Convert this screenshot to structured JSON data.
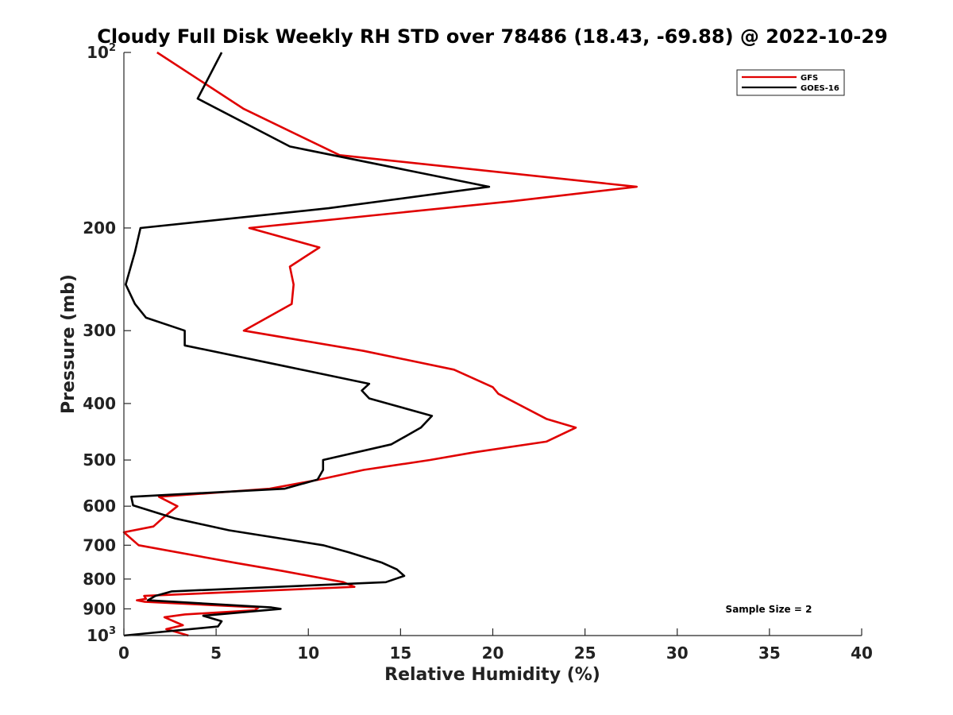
{
  "chart_data": {
    "type": "line",
    "title": "Cloudy Full Disk Weekly RH STD over 78486 (18.43, -69.88) @ 2022-10-29",
    "xlabel": "Relative Humidity (%)",
    "ylabel": "Pressure (mb)",
    "xlim": [
      0,
      40
    ],
    "ylim": [
      100,
      1000
    ],
    "y_scale": "log",
    "y_reversed": true,
    "x_ticks": [
      0,
      5,
      10,
      15,
      20,
      25,
      30,
      35,
      40
    ],
    "y_ticks": [
      {
        "value": 100,
        "label": "10",
        "sup": "2"
      },
      {
        "value": 200,
        "label": "200"
      },
      {
        "value": 300,
        "label": "300"
      },
      {
        "value": 400,
        "label": "400"
      },
      {
        "value": 500,
        "label": "500"
      },
      {
        "value": 600,
        "label": "600"
      },
      {
        "value": 700,
        "label": "700"
      },
      {
        "value": 800,
        "label": "800"
      },
      {
        "value": 900,
        "label": "900"
      },
      {
        "value": 1000,
        "label": "10",
        "sup": "3"
      }
    ],
    "legend_position": "top-right",
    "annotation": "Sample Size = 2",
    "series": [
      {
        "name": "GFS",
        "color": "#e00000",
        "points": [
          [
            1.8,
            100
          ],
          [
            6.5,
            125
          ],
          [
            11.7,
            150
          ],
          [
            27.8,
            170
          ],
          [
            21.0,
            180
          ],
          [
            6.8,
            200
          ],
          [
            10.6,
            216
          ],
          [
            9.0,
            233
          ],
          [
            9.2,
            250
          ],
          [
            9.1,
            270
          ],
          [
            6.5,
            300
          ],
          [
            13.0,
            325
          ],
          [
            17.9,
            350
          ],
          [
            20.0,
            375
          ],
          [
            20.3,
            385
          ],
          [
            22.9,
            425
          ],
          [
            24.5,
            440
          ],
          [
            22.9,
            465
          ],
          [
            19.0,
            485
          ],
          [
            16.6,
            500
          ],
          [
            13.0,
            520
          ],
          [
            10.6,
            540
          ],
          [
            7.9,
            560
          ],
          [
            1.9,
            578
          ],
          [
            2.9,
            600
          ],
          [
            2.2,
            625
          ],
          [
            1.6,
            650
          ],
          [
            0.0,
            665
          ],
          [
            0.8,
            700
          ],
          [
            6.0,
            750
          ],
          [
            8.6,
            775
          ],
          [
            11.9,
            810
          ],
          [
            12.5,
            825
          ],
          [
            1.1,
            855
          ],
          [
            1.2,
            865
          ],
          [
            0.7,
            870
          ],
          [
            1.1,
            875
          ],
          [
            7.3,
            895
          ],
          [
            7.1,
            905
          ],
          [
            3.3,
            920
          ],
          [
            2.2,
            930
          ],
          [
            3.2,
            960
          ],
          [
            2.3,
            975
          ],
          [
            3.5,
            1000
          ]
        ]
      },
      {
        "name": "GOES-16",
        "color": "#000000",
        "points": [
          [
            5.3,
            100
          ],
          [
            4.0,
            120
          ],
          [
            9.0,
            145
          ],
          [
            19.8,
            170
          ],
          [
            11.1,
            185
          ],
          [
            0.9,
            200
          ],
          [
            0.6,
            220
          ],
          [
            0.1,
            250
          ],
          [
            0.6,
            270
          ],
          [
            1.2,
            285
          ],
          [
            3.3,
            300
          ],
          [
            3.3,
            318
          ],
          [
            8.7,
            345
          ],
          [
            13.3,
            370
          ],
          [
            12.9,
            380
          ],
          [
            13.3,
            392
          ],
          [
            16.7,
            420
          ],
          [
            16.1,
            440
          ],
          [
            14.5,
            470
          ],
          [
            10.8,
            500
          ],
          [
            10.8,
            520
          ],
          [
            10.5,
            540
          ],
          [
            8.7,
            560
          ],
          [
            0.4,
            578
          ],
          [
            0.5,
            598
          ],
          [
            2.8,
            630
          ],
          [
            5.7,
            660
          ],
          [
            10.8,
            700
          ],
          [
            12.2,
            720
          ],
          [
            14.0,
            750
          ],
          [
            14.8,
            770
          ],
          [
            15.2,
            790
          ],
          [
            14.2,
            810
          ],
          [
            2.6,
            840
          ],
          [
            1.7,
            855
          ],
          [
            1.3,
            870
          ],
          [
            8.0,
            895
          ],
          [
            8.5,
            900
          ],
          [
            4.3,
            925
          ],
          [
            5.3,
            945
          ],
          [
            5.1,
            965
          ],
          [
            0.0,
            1000
          ]
        ]
      }
    ]
  }
}
